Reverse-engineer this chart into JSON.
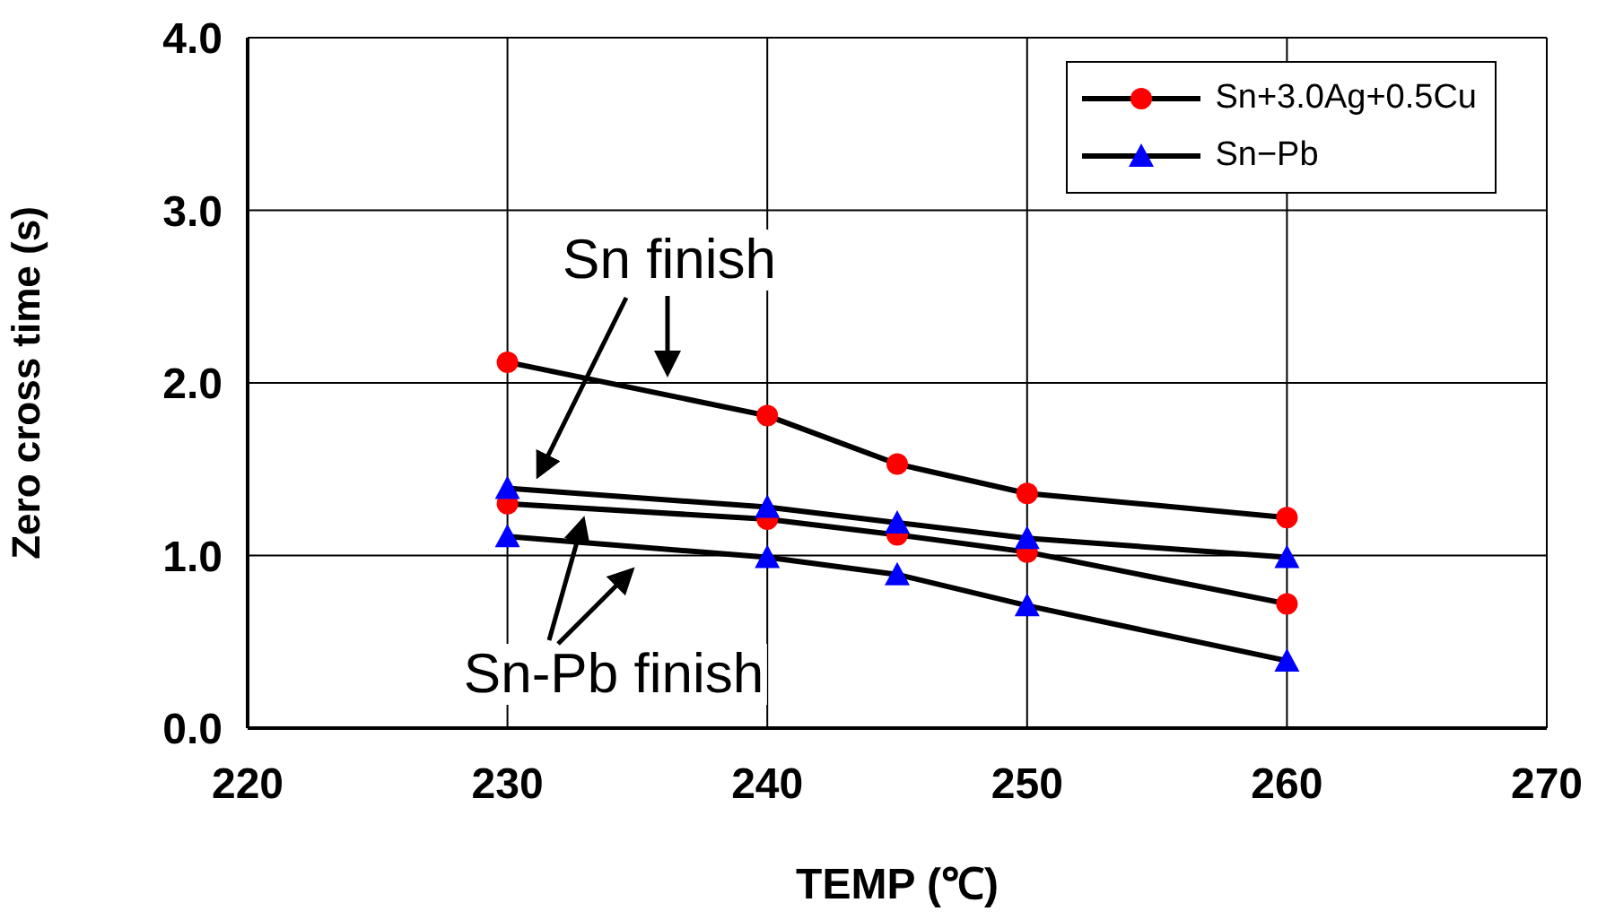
{
  "chart_data": {
    "type": "line",
    "xlabel": "TEMP (℃)",
    "ylabel": "Zero cross time (s)",
    "x": [
      230,
      240,
      245,
      250,
      260
    ],
    "series": [
      {
        "name": "Sn+3.0Ag+0.5Cu",
        "color": "#ff0000",
        "marker": "circle",
        "values": [
          2.12,
          1.81,
          1.53,
          1.36,
          1.22
        ]
      },
      {
        "name": "Sn−Pb",
        "color": "#0000ff",
        "marker": "triangle",
        "values": [
          1.39,
          1.28,
          1.19,
          1.1,
          0.99
        ]
      },
      {
        "color": "#ff0000",
        "marker": "circle",
        "values": [
          1.3,
          1.21,
          1.12,
          1.02,
          0.72
        ]
      },
      {
        "color": "#0000ff",
        "marker": "triangle",
        "values": [
          1.11,
          0.99,
          0.89,
          0.71,
          0.39
        ]
      }
    ],
    "xlim": [
      220,
      270
    ],
    "xticks": [
      220,
      230,
      240,
      250,
      260,
      270
    ],
    "ylim": [
      0,
      4
    ],
    "yticks": [
      {
        "value": 0,
        "label": "0.0"
      },
      {
        "value": 1,
        "label": "1.0"
      },
      {
        "value": 2,
        "label": "2.0"
      },
      {
        "value": 3,
        "label": "3.0"
      },
      {
        "value": 4,
        "label": "4.0"
      }
    ],
    "grid": true,
    "legend": "top right",
    "line_style": "solid",
    "annotations": [
      "Sn finish",
      "Sn-Pb finish"
    ]
  }
}
